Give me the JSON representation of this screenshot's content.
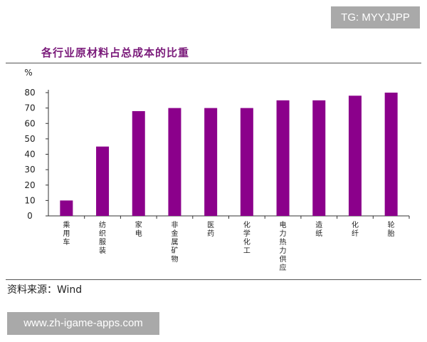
{
  "watermark_top": "TG: MYYJJPP",
  "watermark_bottom": "www.zh-igame-apps.com",
  "source": "资料来源：Wind",
  "colors": {
    "bar": "#8b008b",
    "title": "#7a1a7a"
  },
  "chart_data": {
    "type": "bar",
    "title": "各行业原材料占总成本的比重",
    "ylabel": "%",
    "xlabel": "",
    "ylim": [
      0,
      80
    ],
    "yticks": [
      0,
      10,
      20,
      30,
      40,
      50,
      60,
      70,
      80
    ],
    "categories": [
      "乘用车",
      "纺织服装",
      "家电",
      "非金属矿物",
      "医药",
      "化学化工",
      "电力热力供应",
      "造纸",
      "化纤",
      "轮胎"
    ],
    "values": [
      10,
      45,
      68,
      70,
      70,
      70,
      75,
      75,
      78,
      80
    ],
    "grid": false,
    "legend": "none"
  }
}
